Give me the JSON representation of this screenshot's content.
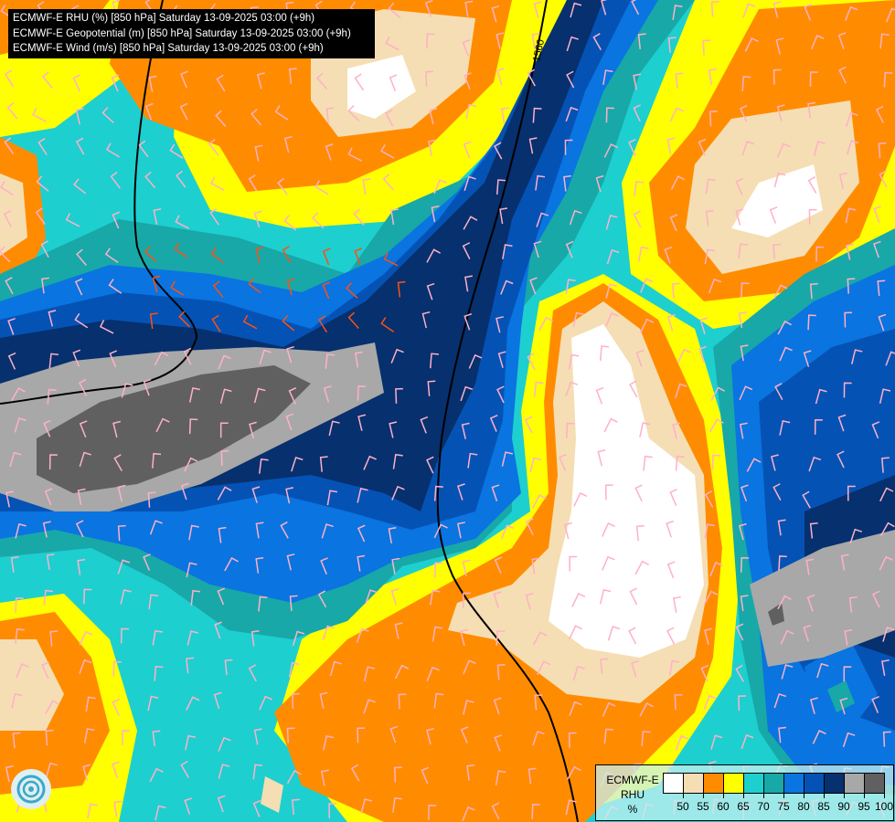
{
  "header": {
    "lines": [
      "ECMWF-E RHU (%) [850 hPa] Saturday 13-09-2025 03:00 (+9h)",
      "ECMWF-E Geopotential (m) [850 hPa] Saturday 13-09-2025 03:00 (+9h)",
      "ECMWF-E Wind (m/s) [850 hPa] Saturday 13-09-2025 03:00 (+9h)"
    ]
  },
  "contour_label": "1560",
  "legend": {
    "model": "ECMWF-E",
    "variable": "RHU",
    "unit": "%",
    "colors": [
      "#ffffff",
      "#f5deb3",
      "#ff8c00",
      "#ffff00",
      "#1ecfcf",
      "#18a8a8",
      "#0a74e0",
      "#0552b5",
      "#06306e",
      "#a8a8a8",
      "#606060"
    ],
    "ticks": [
      "50",
      "55",
      "60",
      "65",
      "70",
      "75",
      "80",
      "85",
      "90",
      "95",
      "100"
    ]
  },
  "logo": "ECMWF logo"
}
